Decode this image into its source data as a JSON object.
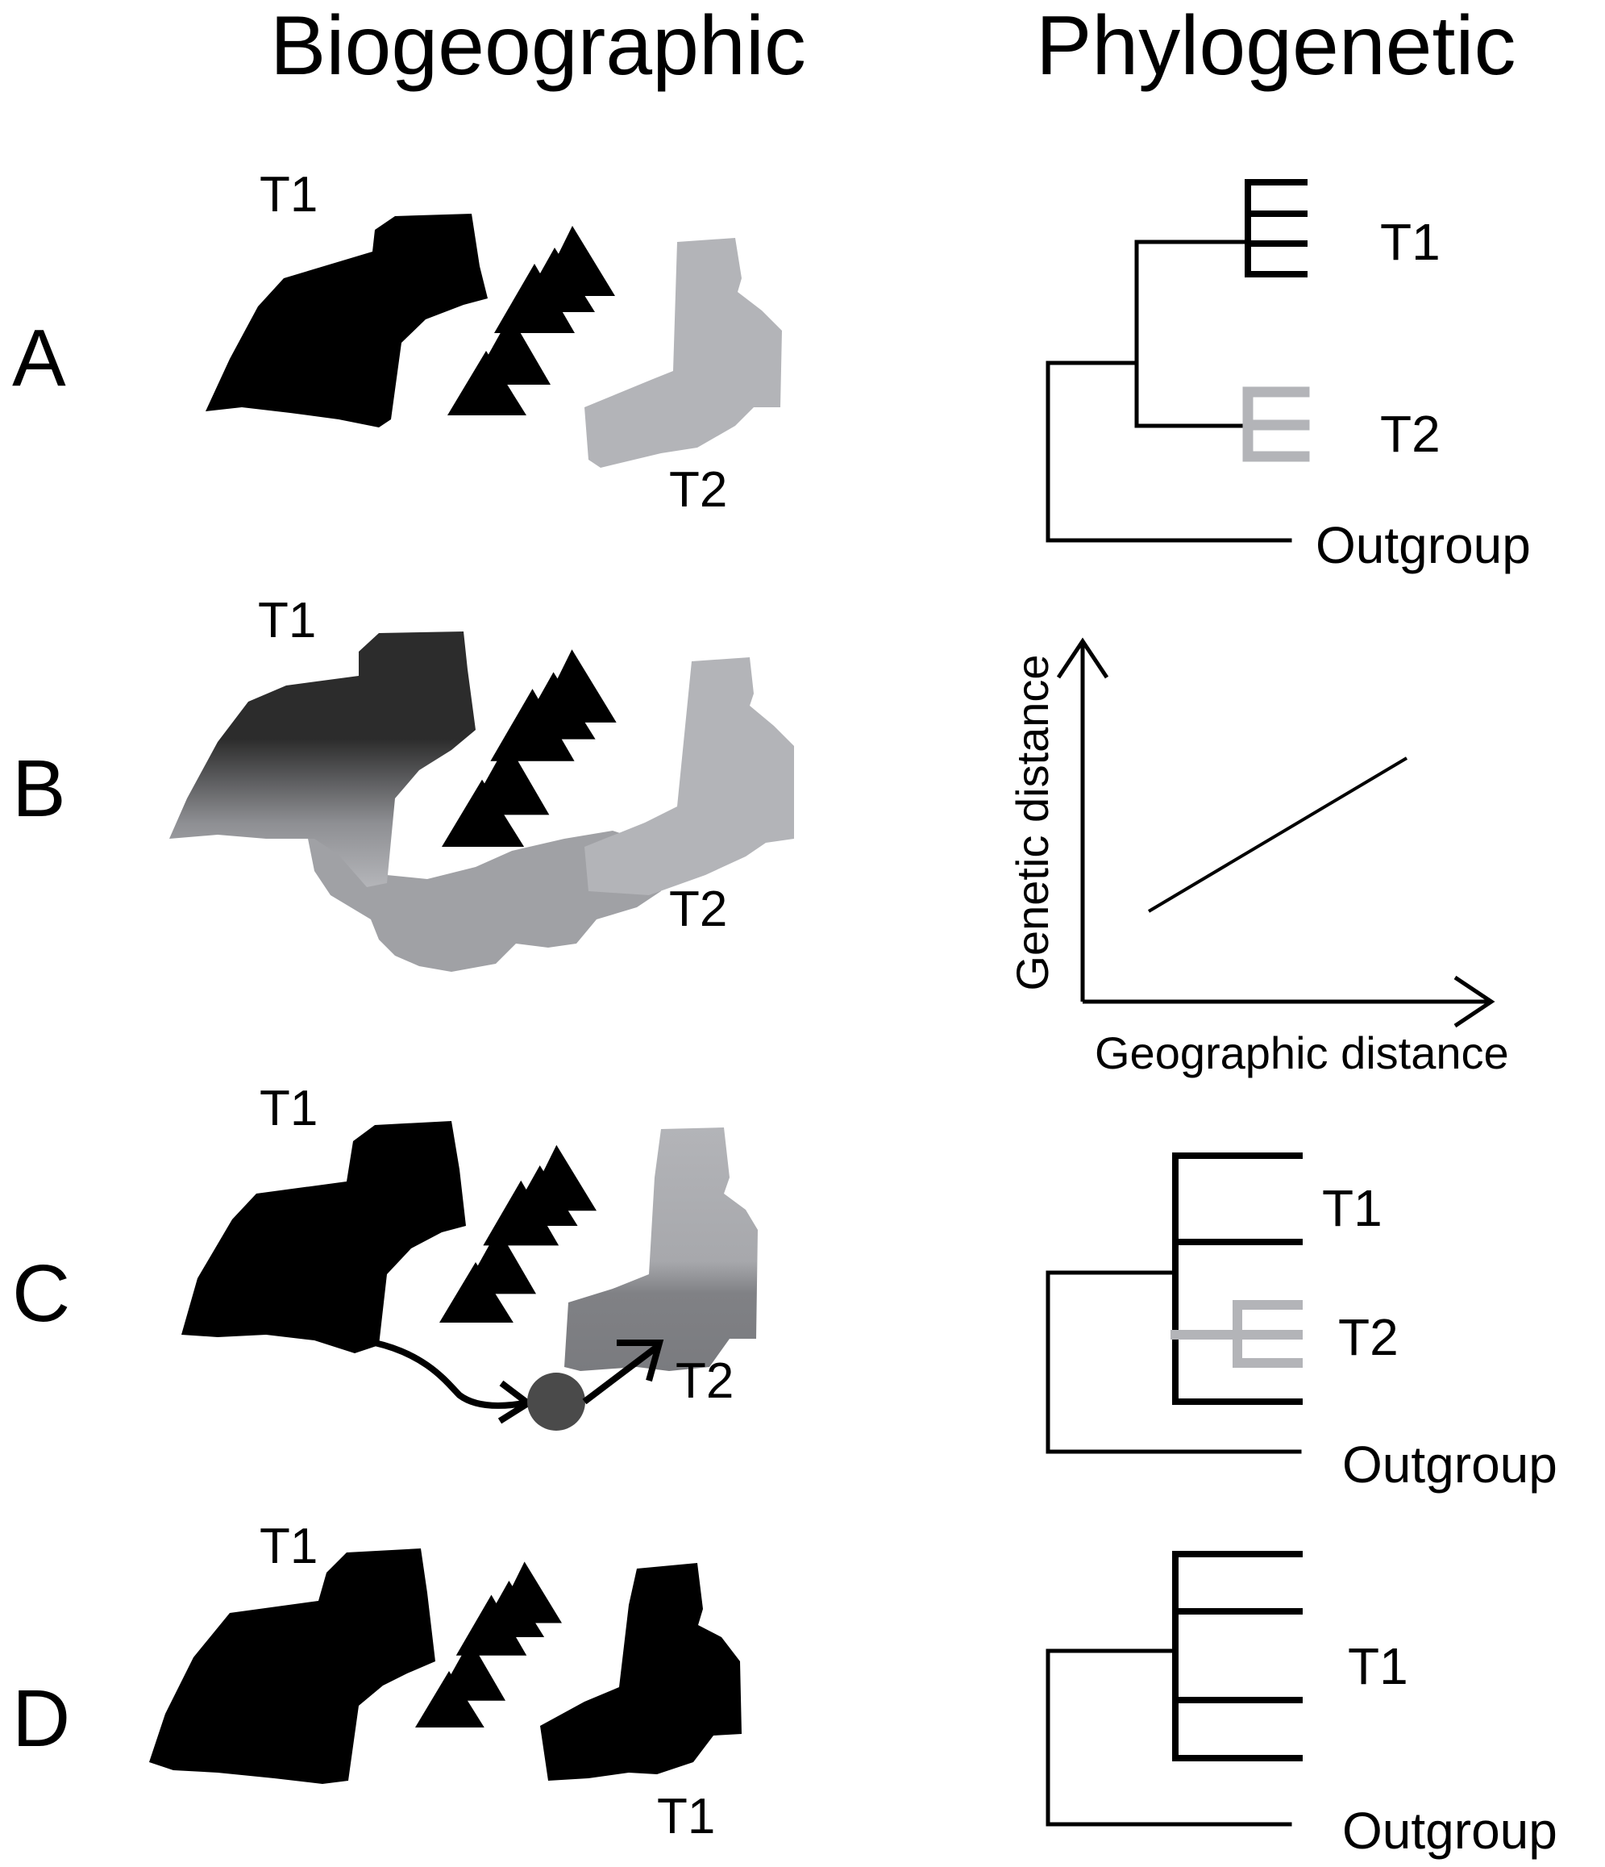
{
  "columns": {
    "left_title": "Biogeographic",
    "right_title": "Phylogenetic"
  },
  "rows": {
    "A": {
      "letter": "A",
      "map": {
        "taxon_top": "T1",
        "taxon_bottom": "T2"
      },
      "tree": {
        "tip_1": "T1",
        "tip_2": "T2",
        "outgroup": "Outgroup"
      }
    },
    "B": {
      "letter": "B",
      "map": {
        "taxon_top": "T1",
        "taxon_bottom": "T2"
      },
      "plot": {
        "ylabel": "Genetic distance",
        "xlabel": "Geographic distance"
      }
    },
    "C": {
      "letter": "C",
      "map": {
        "taxon_top": "T1",
        "taxon_bottom": "T2"
      },
      "tree": {
        "tip_1": "T1",
        "tip_2": "T2",
        "outgroup": "Outgroup"
      }
    },
    "D": {
      "letter": "D",
      "map": {
        "taxon_top": "T1",
        "taxon_bottom": "T1"
      },
      "tree": {
        "tip_1": "T1",
        "outgroup": "Outgroup"
      }
    }
  },
  "colors": {
    "black": "#000000",
    "light_gray": "#b3b4b8",
    "mid_gray": "#a0a1a5",
    "dark_gray": "#2c2c2c",
    "dot": "#4a4a4a"
  }
}
